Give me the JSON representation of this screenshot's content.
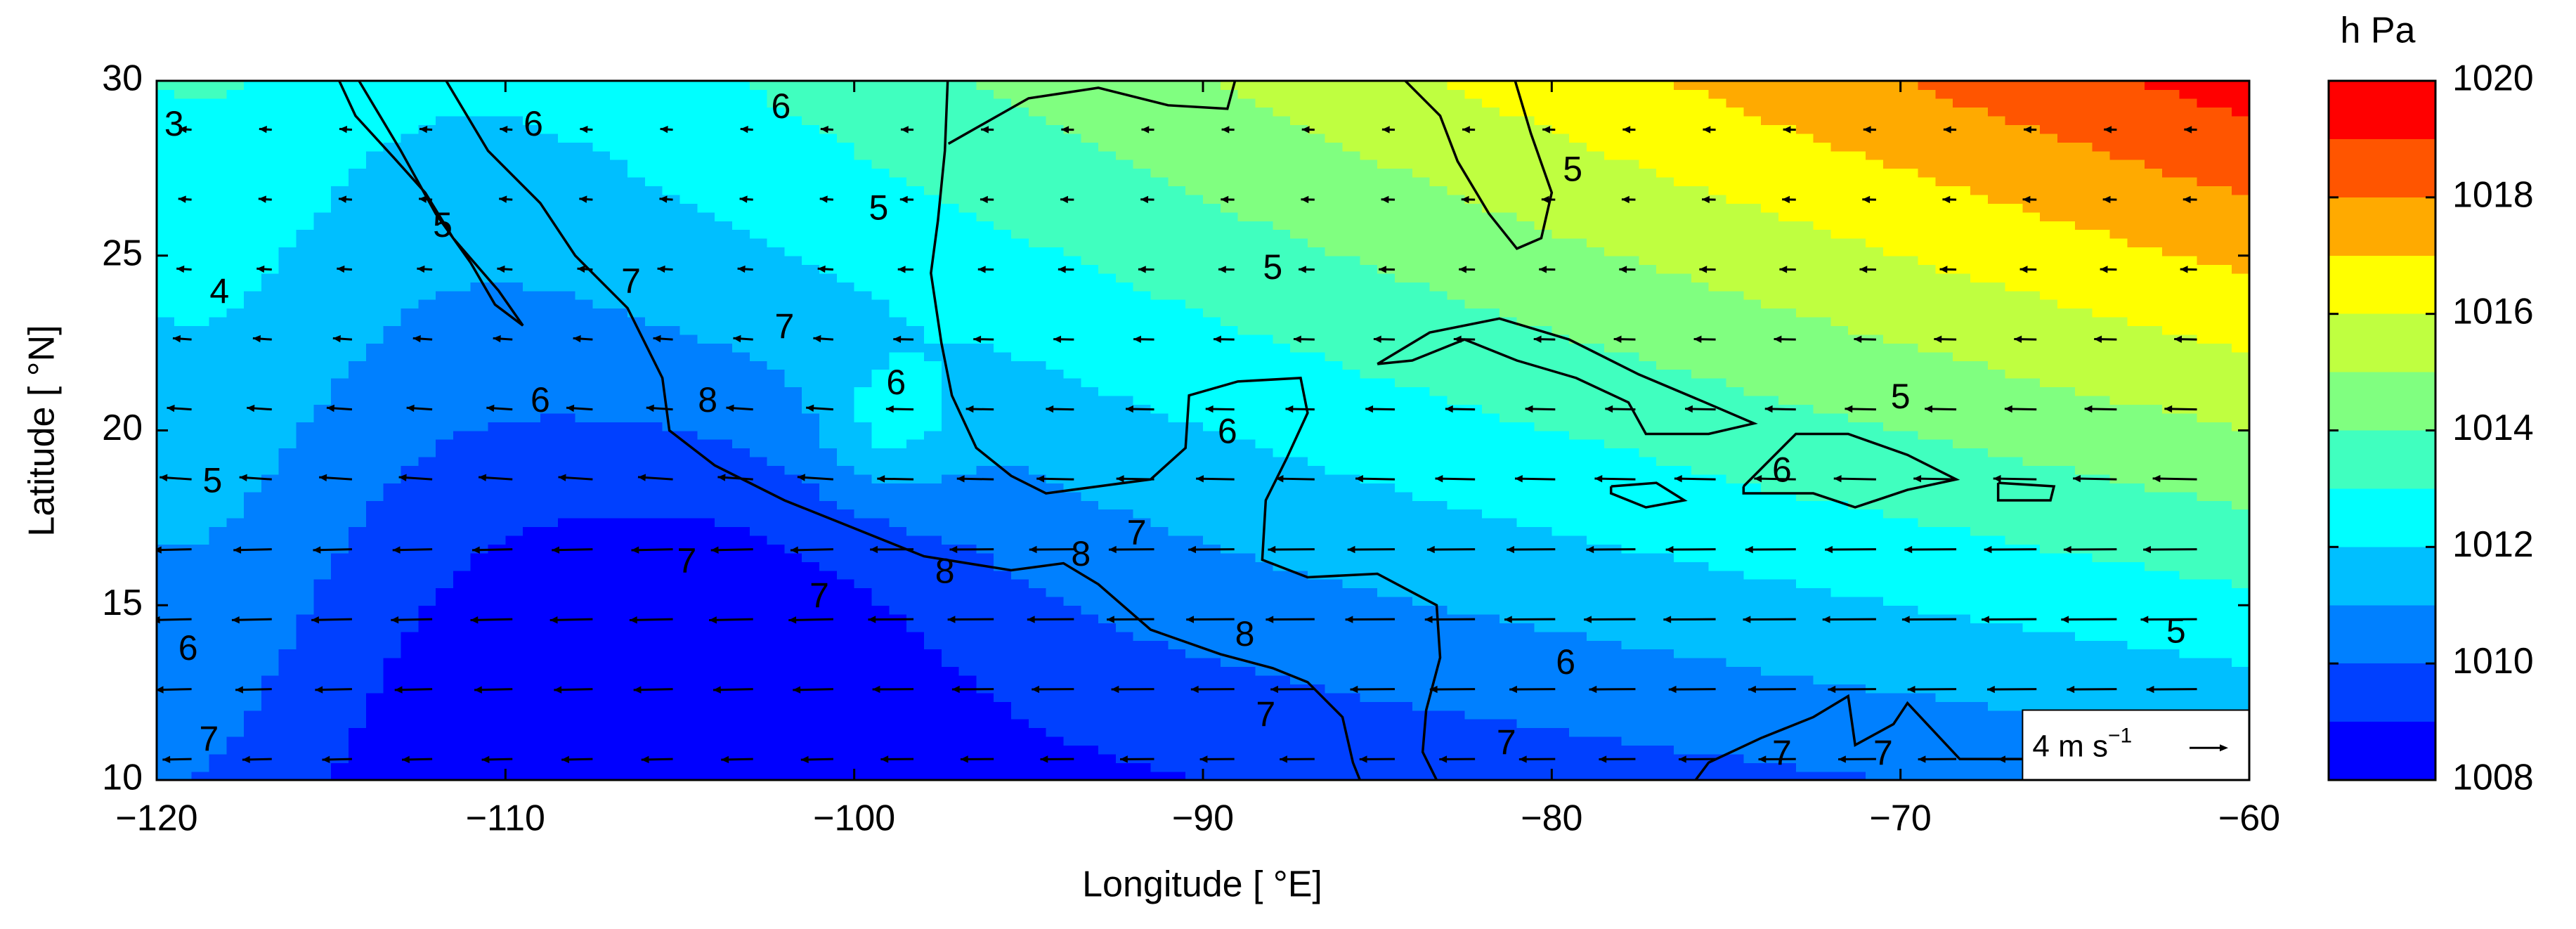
{
  "map": {
    "xlabel": "Longitude [ °E]",
    "ylabel": "Latitude [ °N]",
    "xlim": [
      -120,
      -60
    ],
    "xticks": [
      {
        "value": -120,
        "label": "−120"
      },
      {
        "value": -110,
        "label": "−110"
      },
      {
        "value": -100,
        "label": "−100"
      },
      {
        "value": -90,
        "label": "−90"
      },
      {
        "value": -80,
        "label": "−80"
      },
      {
        "value": -70,
        "label": "−70"
      },
      {
        "value": -60,
        "label": "−60"
      }
    ],
    "ylim": [
      10,
      30
    ],
    "yticks": [
      10,
      15,
      20,
      25,
      30
    ],
    "colorbar": {
      "label": "h Pa",
      "lim": [
        1008,
        1020
      ],
      "ticks": [
        1008,
        1010,
        1012,
        1014,
        1016,
        1018,
        1020
      ],
      "levels": [
        1008,
        1009,
        1010,
        1011,
        1012,
        1013,
        1014,
        1015,
        1016,
        1017,
        1018,
        1019,
        1020
      ],
      "colors": [
        "#0000ff",
        "#0040ff",
        "#0080ff",
        "#00bfff",
        "#00ffff",
        "#40ffbf",
        "#80ff80",
        "#bfff40",
        "#ffff00",
        "#ffaa00",
        "#ff5500",
        "#ff0000"
      ]
    },
    "contour_labels": [
      {
        "value": 3,
        "lon": -119.5,
        "lat": 28.7
      },
      {
        "value": 6,
        "lon": -109.2,
        "lat": 28.7
      },
      {
        "value": 6,
        "lon": -102.1,
        "lat": 29.2
      },
      {
        "value": 5,
        "lon": -111.8,
        "lat": 25.8
      },
      {
        "value": 4,
        "lon": -118.2,
        "lat": 23.9
      },
      {
        "value": 7,
        "lon": -106.4,
        "lat": 24.2
      },
      {
        "value": 5,
        "lon": -99.3,
        "lat": 26.3
      },
      {
        "value": 5,
        "lon": -79.4,
        "lat": 27.4
      },
      {
        "value": 5,
        "lon": -88.0,
        "lat": 24.6
      },
      {
        "value": 7,
        "lon": -102.0,
        "lat": 22.9
      },
      {
        "value": 6,
        "lon": -98.8,
        "lat": 21.3
      },
      {
        "value": 8,
        "lon": -104.2,
        "lat": 20.8
      },
      {
        "value": 6,
        "lon": -109.0,
        "lat": 20.8
      },
      {
        "value": 5,
        "lon": -118.4,
        "lat": 18.5
      },
      {
        "value": 6,
        "lon": -89.3,
        "lat": 19.9
      },
      {
        "value": 5,
        "lon": -70.0,
        "lat": 20.9
      },
      {
        "value": 6,
        "lon": -73.4,
        "lat": 18.8
      },
      {
        "value": 7,
        "lon": -104.8,
        "lat": 16.2
      },
      {
        "value": 8,
        "lon": -97.4,
        "lat": 15.9
      },
      {
        "value": 8,
        "lon": -93.5,
        "lat": 16.4
      },
      {
        "value": 7,
        "lon": -91.9,
        "lat": 17.0
      },
      {
        "value": 7,
        "lon": -101.0,
        "lat": 15.2
      },
      {
        "value": 8,
        "lon": -88.8,
        "lat": 14.1
      },
      {
        "value": 6,
        "lon": -119.1,
        "lat": 13.7
      },
      {
        "value": 6,
        "lon": -79.6,
        "lat": 13.3
      },
      {
        "value": 5,
        "lon": -62.1,
        "lat": 14.2
      },
      {
        "value": 7,
        "lon": -88.2,
        "lat": 11.8
      },
      {
        "value": 7,
        "lon": -81.3,
        "lat": 11.0
      },
      {
        "value": 7,
        "lon": -118.5,
        "lat": 11.1
      },
      {
        "value": 7,
        "lon": -73.4,
        "lat": 10.7
      },
      {
        "value": 7,
        "lon": -70.5,
        "lat": 10.7
      }
    ],
    "reference_vector": {
      "label": "4 m s",
      "exponent": "−1"
    }
  }
}
